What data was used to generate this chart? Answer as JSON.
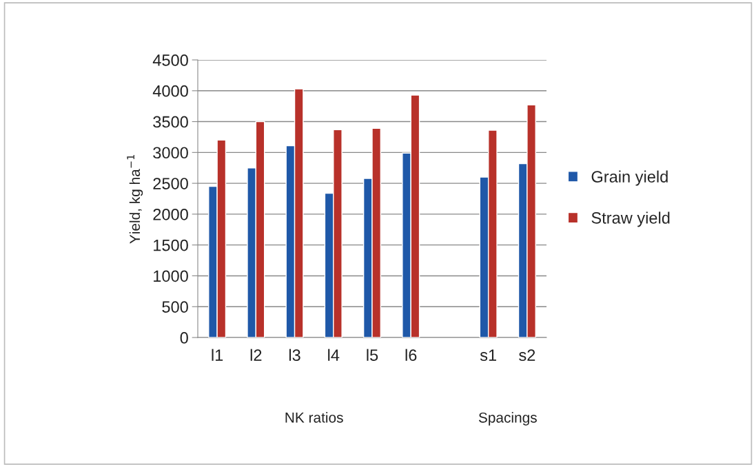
{
  "chart_data": {
    "type": "bar",
    "ylabel": "Yield, kg ha$^{−1}$",
    "categories": [
      "l1",
      "l2",
      "l3",
      "l4",
      "l5",
      "l6",
      null,
      "s1",
      "s2"
    ],
    "series": [
      {
        "name": "Grain yield",
        "color": "#1f58a8",
        "values": [
          2450,
          2750,
          3110,
          2340,
          2580,
          2990,
          null,
          2600,
          2820
        ]
      },
      {
        "name": "Straw yield",
        "color": "#b8312a",
        "values": [
          3200,
          3500,
          4030,
          3370,
          3390,
          3930,
          null,
          3360,
          3770
        ]
      }
    ],
    "ylim": [
      0,
      4500
    ],
    "yticks": [
      0,
      500,
      1000,
      1500,
      2000,
      2500,
      3000,
      3500,
      4000,
      4500
    ],
    "grid": "y",
    "legend": "right",
    "annotations": [
      "NK ratios",
      "Spacings"
    ]
  }
}
